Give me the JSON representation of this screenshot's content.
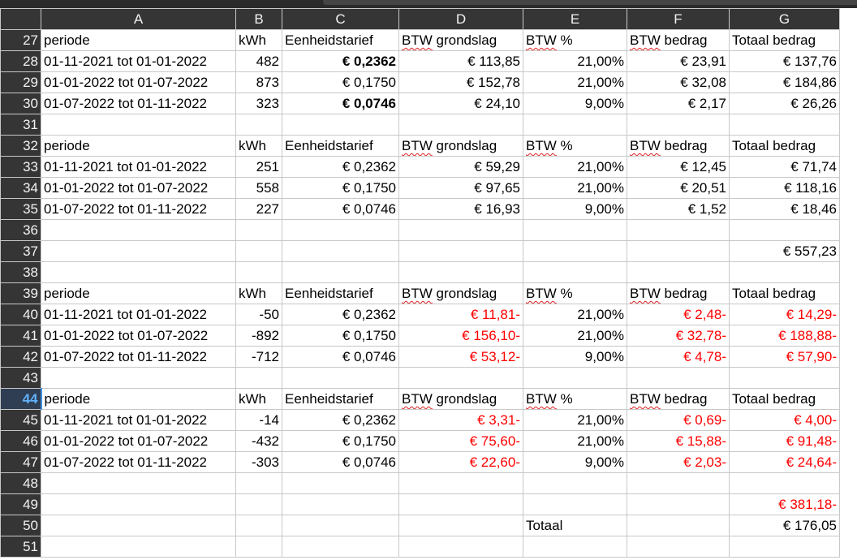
{
  "columns": [
    "A",
    "B",
    "C",
    "D",
    "E",
    "F",
    "G"
  ],
  "rows": [
    {
      "n": "27",
      "cells": [
        "periode",
        "kWh",
        "Eenheidstarief",
        "BTW grondslag",
        "BTW %",
        "BTW bedrag",
        "Totaal bedrag"
      ],
      "type": "header"
    },
    {
      "n": "28",
      "cells": [
        "01-11-2021 tot 01-01-2022",
        "482",
        "€ 0,2362",
        "€ 113,85",
        "21,00%",
        "€ 23,91",
        "€ 137,76"
      ],
      "type": "data",
      "bold_c": true
    },
    {
      "n": "29",
      "cells": [
        "01-01-2022 tot 01-07-2022",
        "873",
        "€ 0,1750",
        "€ 152,78",
        "21,00%",
        "€ 32,08",
        "€ 184,86"
      ],
      "type": "data"
    },
    {
      "n": "30",
      "cells": [
        "01-07-2022 tot 01-11-2022",
        "323",
        "€ 0,0746",
        "€ 24,10",
        "9,00%",
        "€ 2,17",
        "€ 26,26"
      ],
      "type": "data",
      "bold_c": true
    },
    {
      "n": "31",
      "cells": [
        "",
        "",
        "",
        "",
        "",
        "",
        ""
      ],
      "type": "empty"
    },
    {
      "n": "32",
      "cells": [
        "periode",
        "kWh",
        "Eenheidstarief",
        "BTW grondslag",
        "BTW %",
        "BTW bedrag",
        "Totaal bedrag"
      ],
      "type": "header"
    },
    {
      "n": "33",
      "cells": [
        "01-11-2021 tot 01-01-2022",
        "251",
        "€ 0,2362",
        "€ 59,29",
        "21,00%",
        "€ 12,45",
        "€ 71,74"
      ],
      "type": "data"
    },
    {
      "n": "34",
      "cells": [
        "01-01-2022 tot 01-07-2022",
        "558",
        "€ 0,1750",
        "€ 97,65",
        "21,00%",
        "€ 20,51",
        "€ 118,16"
      ],
      "type": "data"
    },
    {
      "n": "35",
      "cells": [
        "01-07-2022 tot 01-11-2022",
        "227",
        "€ 0,0746",
        "€ 16,93",
        "9,00%",
        "€ 1,52",
        "€ 18,46"
      ],
      "type": "data"
    },
    {
      "n": "36",
      "cells": [
        "",
        "",
        "",
        "",
        "",
        "",
        ""
      ],
      "type": "empty"
    },
    {
      "n": "37",
      "cells": [
        "",
        "",
        "",
        "",
        "",
        "",
        "€ 557,23"
      ],
      "type": "total"
    },
    {
      "n": "38",
      "cells": [
        "",
        "",
        "",
        "",
        "",
        "",
        ""
      ],
      "type": "empty"
    },
    {
      "n": "39",
      "cells": [
        "periode",
        "kWh",
        "Eenheidstarief",
        "BTW grondslag",
        "BTW %",
        "BTW bedrag",
        "Totaal bedrag"
      ],
      "type": "header"
    },
    {
      "n": "40",
      "cells": [
        "01-11-2021 tot 01-01-2022",
        "-50",
        "€ 0,2362",
        "€ 11,81-",
        "21,00%",
        "€ 2,48-",
        "€ 14,29-"
      ],
      "type": "data",
      "neg": true
    },
    {
      "n": "41",
      "cells": [
        "01-01-2022 tot 01-07-2022",
        "-892",
        "€ 0,1750",
        "€ 156,10-",
        "21,00%",
        "€ 32,78-",
        "€ 188,88-"
      ],
      "type": "data",
      "neg": true
    },
    {
      "n": "42",
      "cells": [
        "01-07-2022 tot 01-11-2022",
        "-712",
        "€ 0,0746",
        "€ 53,12-",
        "9,00%",
        "€ 4,78-",
        "€ 57,90-"
      ],
      "type": "data",
      "neg": true
    },
    {
      "n": "43",
      "cells": [
        "",
        "",
        "",
        "",
        "",
        "",
        ""
      ],
      "type": "empty"
    },
    {
      "n": "44",
      "cells": [
        "periode",
        "kWh",
        "Eenheidstarief",
        "BTW grondslag",
        "BTW %",
        "BTW bedrag",
        "Totaal bedrag"
      ],
      "type": "header",
      "selected": true
    },
    {
      "n": "45",
      "cells": [
        "01-11-2021 tot 01-01-2022",
        "-14",
        "€ 0,2362",
        "€ 3,31-",
        "21,00%",
        "€ 0,69-",
        "€ 4,00-"
      ],
      "type": "data",
      "neg": true
    },
    {
      "n": "46",
      "cells": [
        "01-01-2022 tot 01-07-2022",
        "-432",
        "€ 0,1750",
        "€ 75,60-",
        "21,00%",
        "€ 15,88-",
        "€ 91,48-"
      ],
      "type": "data",
      "neg": true
    },
    {
      "n": "47",
      "cells": [
        "01-07-2022 tot 01-11-2022",
        "-303",
        "€ 0,0746",
        "€ 22,60-",
        "9,00%",
        "€ 2,03-",
        "€ 24,64-"
      ],
      "type": "data",
      "neg": true
    },
    {
      "n": "48",
      "cells": [
        "",
        "",
        "",
        "",
        "",
        "",
        ""
      ],
      "type": "empty"
    },
    {
      "n": "49",
      "cells": [
        "",
        "",
        "",
        "",
        "",
        "",
        "€ 381,18-"
      ],
      "type": "total",
      "neg_g": true
    },
    {
      "n": "50",
      "cells": [
        "",
        "",
        "",
        "",
        "Totaal",
        "",
        "€ 176,05"
      ],
      "type": "grandtotal"
    },
    {
      "n": "51",
      "cells": [
        "",
        "",
        "",
        "",
        "",
        "",
        ""
      ],
      "type": "empty"
    }
  ],
  "colors": {
    "negative": "#ff0000",
    "header_bg": "#353535",
    "selected_row_text": "#5fb2ff"
  }
}
